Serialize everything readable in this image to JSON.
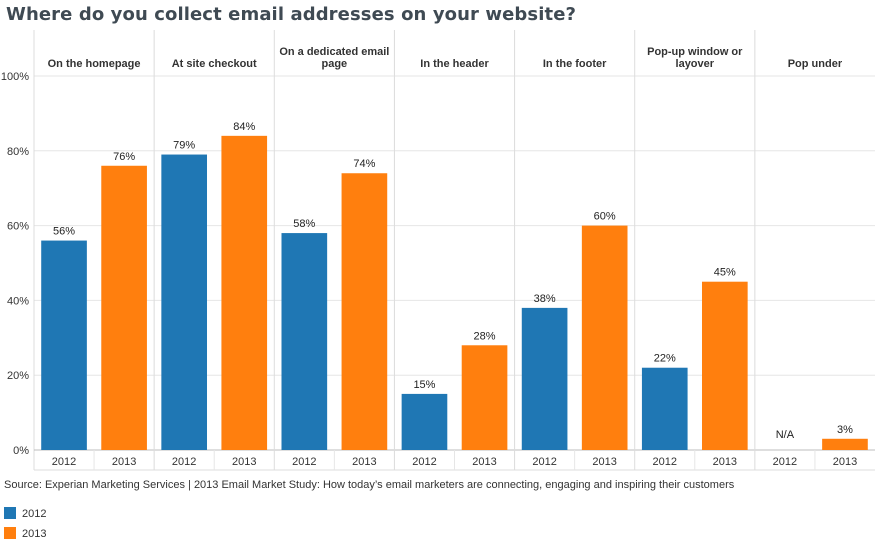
{
  "title": "Where do you collect email addresses on your website?",
  "source": "Source: Experian Marketing Services  | 2013 Email Market Study: How today’s email marketers are connecting, engaging and inspiring their customers",
  "colors": {
    "2012": "#1f77b4",
    "2013": "#ff7f0e",
    "grid": "#dcdcdc",
    "text": "#333333"
  },
  "legend": [
    {
      "label": "2012",
      "color": "#1f77b4"
    },
    {
      "label": "2013",
      "color": "#ff7f0e"
    }
  ],
  "chart_data": {
    "type": "bar",
    "title": "Where do you collect email addresses on your website?",
    "xlabel": "",
    "ylabel": "",
    "ylim": [
      0,
      100
    ],
    "yticks": [
      "0%",
      "20%",
      "40%",
      "60%",
      "80%",
      "100%"
    ],
    "ytick_values": [
      0,
      20,
      40,
      60,
      80,
      100
    ],
    "categories": [
      "On the homepage",
      "At site checkout",
      "On a dedicated email page",
      "In the header",
      "In the footer",
      "Pop-up window or layover",
      "Pop under"
    ],
    "category_lines": [
      [
        "On the homepage"
      ],
      [
        "At site checkout"
      ],
      [
        "On a dedicated email",
        "page"
      ],
      [
        "In the header"
      ],
      [
        "In the footer"
      ],
      [
        "Pop-up window or",
        "layover"
      ],
      [
        "Pop under"
      ]
    ],
    "series": [
      {
        "name": "2012",
        "values": [
          56,
          79,
          58,
          15,
          38,
          22,
          null
        ],
        "labels": [
          "56%",
          "79%",
          "58%",
          "15%",
          "38%",
          "22%",
          "N/A"
        ]
      },
      {
        "name": "2013",
        "values": [
          76,
          84,
          74,
          28,
          60,
          45,
          3
        ],
        "labels": [
          "76%",
          "84%",
          "74%",
          "28%",
          "60%",
          "45%",
          "3%"
        ]
      }
    ],
    "grid": true,
    "legend_position": "bottom-left"
  }
}
